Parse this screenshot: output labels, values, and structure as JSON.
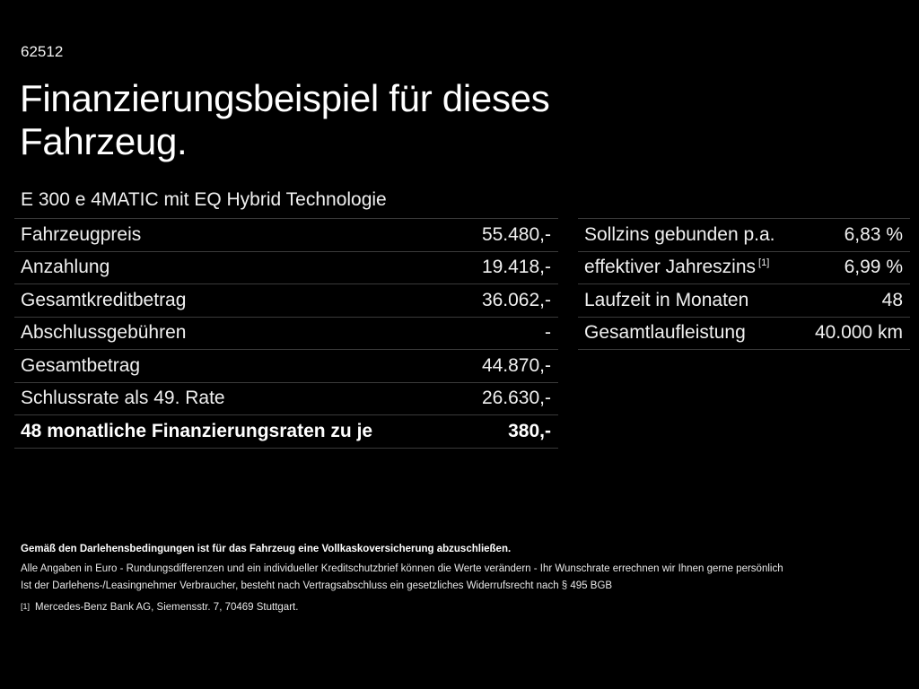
{
  "header": {
    "code": "62512",
    "title_line1": "Finanzierungsbeispiel für dieses",
    "title_line2": "Fahrzeug.",
    "subtitle": "E 300 e 4MATIC mit EQ Hybrid Technologie"
  },
  "left_table": [
    {
      "label": "Fahrzeugpreis",
      "value": "55.480,-"
    },
    {
      "label": "Anzahlung",
      "value": "19.418,-"
    },
    {
      "label": "Gesamtkreditbetrag",
      "value": "36.062,-"
    },
    {
      "label": "Abschlussgebühren",
      "value": "-"
    },
    {
      "label": "Gesamtbetrag",
      "value": "44.870,-"
    },
    {
      "label": "Schlussrate als 49. Rate",
      "value": "26.630,-"
    },
    {
      "label": "48 monatliche Finanzierungsraten zu je",
      "value": "380,-"
    }
  ],
  "right_table": [
    {
      "label": "Sollzins gebunden p.a.",
      "value": "6,83 %"
    },
    {
      "label": "effektiver Jahreszins",
      "sup": "[1]",
      "value": "6,99 %"
    },
    {
      "label": "Laufzeit in Monaten",
      "value": "48"
    },
    {
      "label": "Gesamtlaufleistung",
      "value": "40.000 km"
    }
  ],
  "footer": {
    "bold_note": "Gemäß den Darlehensbedingungen ist für das Fahrzeug eine Vollkaskoversicherung abzuschließen.",
    "line1": "Alle Angaben in Euro - Rundungsdifferenzen und ein individueller Kreditschutzbrief können die Werte verändern - Ihr Wunschrate errechnen wir Ihnen gerne persönlich",
    "line2": "Ist der Darlehens-/Leasingnehmer Verbraucher, besteht nach Vertragsabschluss ein gesetzliches Widerrufsrecht nach § 495 BGB",
    "ref_marker": "[1]",
    "ref_text": "Mercedes-Benz Bank AG, Siemensstr. 7, 70469 Stuttgart."
  }
}
